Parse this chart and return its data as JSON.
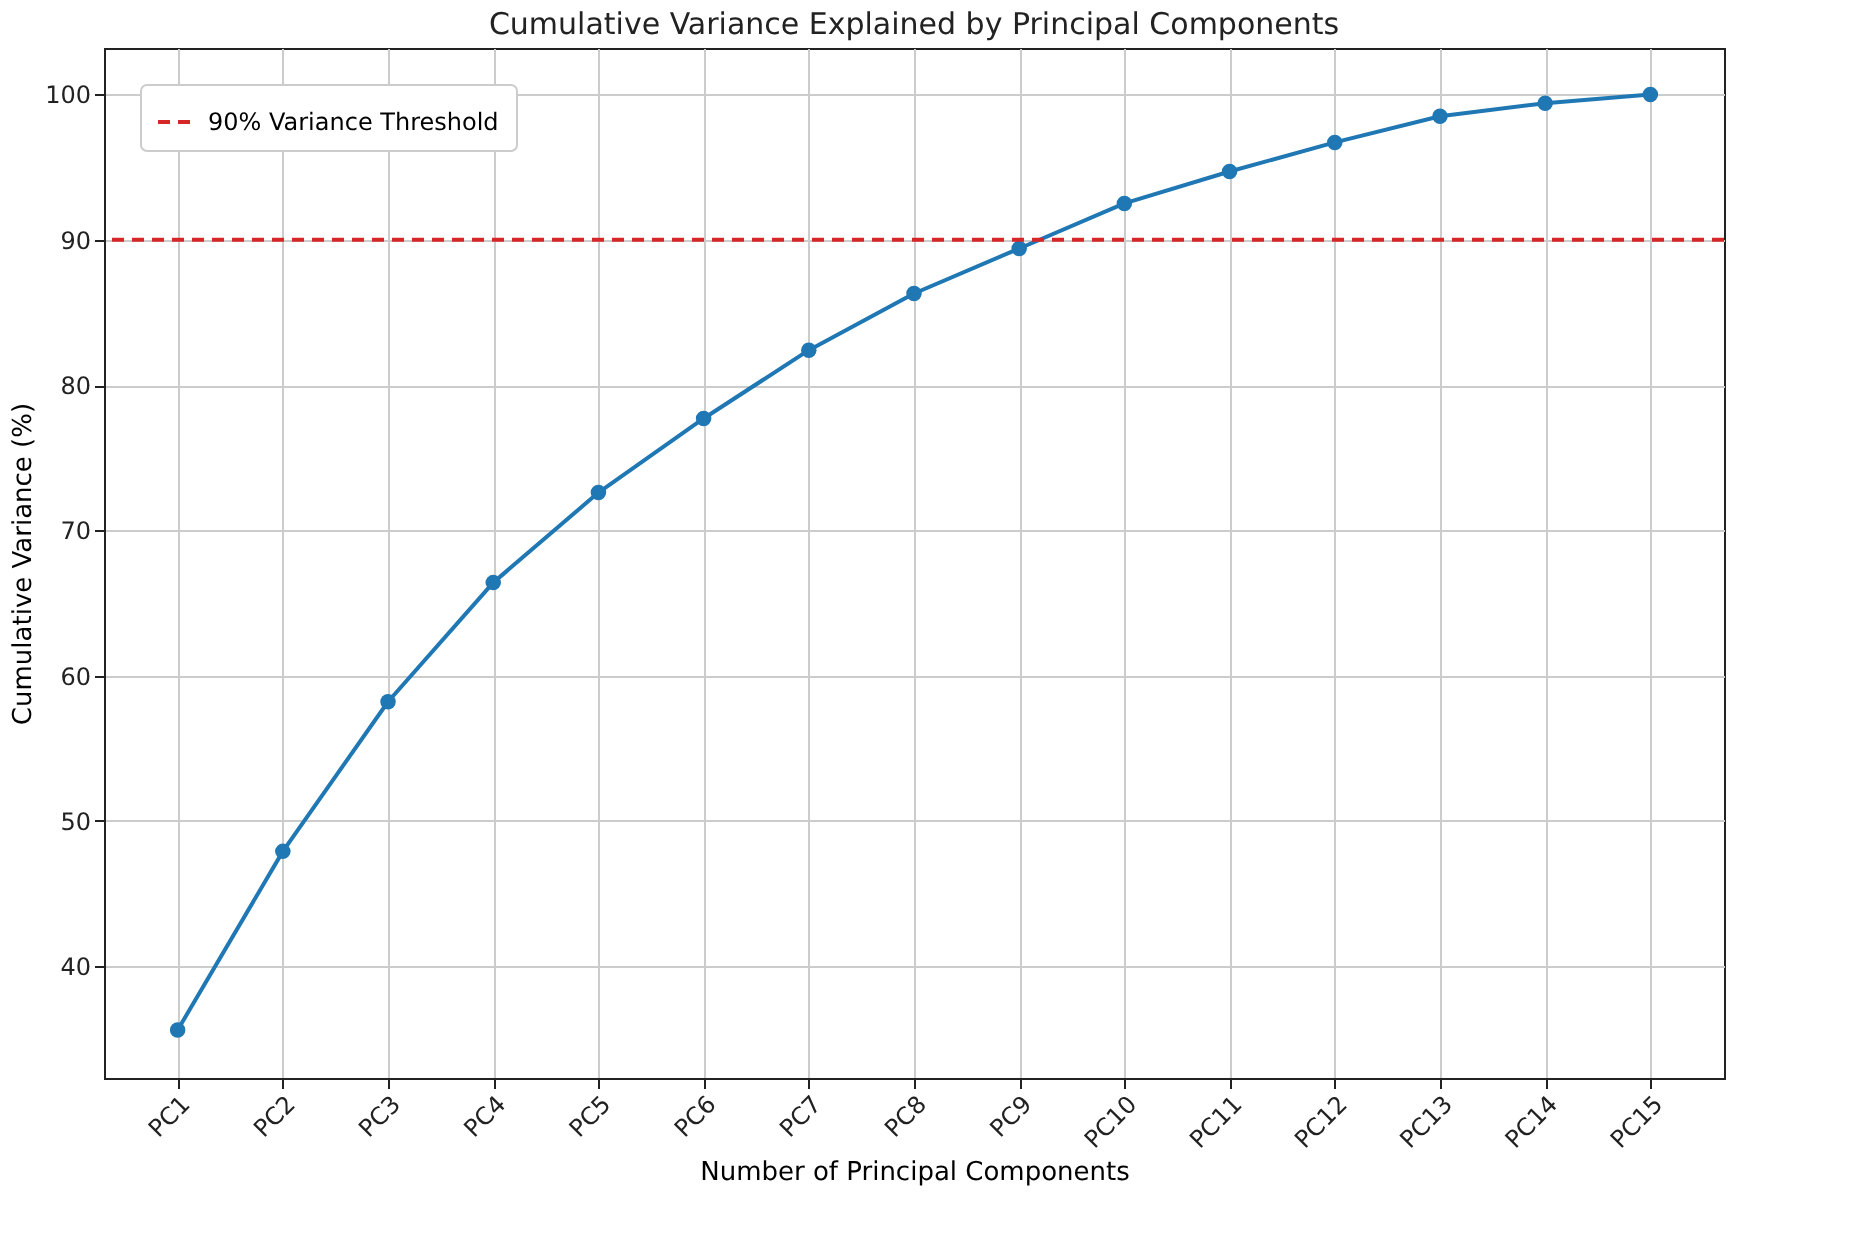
{
  "chart_data": {
    "type": "line",
    "title": "Cumulative Variance Explained by Principal Components",
    "xlabel": "Number of Principal Components",
    "ylabel": "Cumulative Variance (%)",
    "categories": [
      "PC1",
      "PC2",
      "PC3",
      "PC4",
      "PC5",
      "PC6",
      "PC7",
      "PC8",
      "PC9",
      "PC10",
      "PC11",
      "PC12",
      "PC13",
      "PC14",
      "PC15"
    ],
    "series": [
      {
        "color": "#1f77b4",
        "values": [
          35.6,
          47.9,
          58.2,
          66.4,
          72.6,
          77.7,
          82.4,
          86.3,
          89.4,
          92.5,
          94.7,
          96.7,
          98.5,
          99.4,
          100
        ]
      }
    ],
    "ylim": [
      32.3,
      103.2
    ],
    "yticks": [
      40,
      50,
      60,
      70,
      80,
      90,
      100
    ],
    "ref_lines": [
      {
        "axis": "y",
        "value": 90,
        "label": "90% Variance Threshold",
        "color": "#d62728",
        "line_style": "dashed"
      }
    ],
    "grid": true,
    "legend": "top left",
    "marker": "circle",
    "line_style": "solid"
  }
}
